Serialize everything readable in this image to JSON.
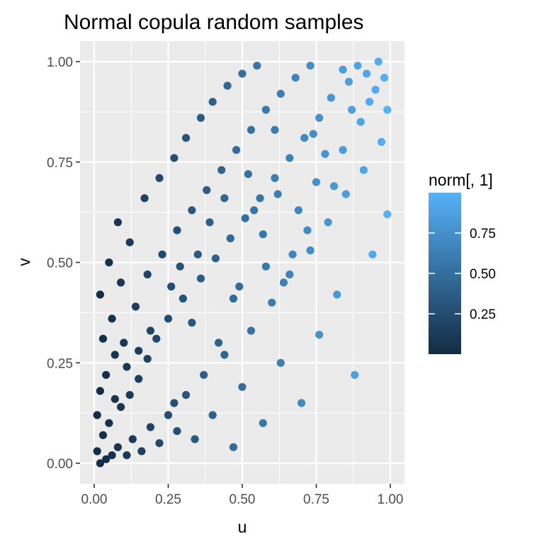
{
  "chart_data": {
    "type": "scatter",
    "title": "Normal copula random samples",
    "xlabel": "u",
    "ylabel": "v",
    "xlim": [
      0,
      1
    ],
    "ylim": [
      0,
      1
    ],
    "x_ticks": [
      "0.00",
      "0.25",
      "0.50",
      "0.75",
      "1.00"
    ],
    "y_ticks": [
      "0.00",
      "0.25",
      "0.50",
      "0.75",
      "1.00"
    ],
    "x_tick_values": [
      0,
      0.25,
      0.5,
      0.75,
      1
    ],
    "y_tick_values": [
      0,
      0.25,
      0.5,
      0.75,
      1
    ],
    "grid": true,
    "color_variable": "u",
    "legend": {
      "title": "norm[, 1]",
      "placement": "right",
      "range": [
        0,
        1
      ],
      "breaks": [
        0.25,
        0.5,
        0.75
      ],
      "break_labels": [
        "0.25",
        "0.50",
        "0.75"
      ],
      "low_color": "#132B43",
      "high_color": "#56B1F7"
    },
    "series": [
      {
        "points": [
          [
            0.02,
            0.0
          ],
          [
            0.04,
            0.01
          ],
          [
            0.01,
            0.03
          ],
          [
            0.06,
            0.02
          ],
          [
            0.03,
            0.07
          ],
          [
            0.08,
            0.04
          ],
          [
            0.11,
            0.02
          ],
          [
            0.01,
            0.12
          ],
          [
            0.05,
            0.1
          ],
          [
            0.13,
            0.06
          ],
          [
            0.02,
            0.18
          ],
          [
            0.09,
            0.14
          ],
          [
            0.16,
            0.03
          ],
          [
            0.04,
            0.22
          ],
          [
            0.12,
            0.17
          ],
          [
            0.19,
            0.09
          ],
          [
            0.07,
            0.27
          ],
          [
            0.22,
            0.05
          ],
          [
            0.15,
            0.21
          ],
          [
            0.03,
            0.31
          ],
          [
            0.25,
            0.12
          ],
          [
            0.1,
            0.3
          ],
          [
            0.18,
            0.26
          ],
          [
            0.28,
            0.08
          ],
          [
            0.06,
            0.36
          ],
          [
            0.21,
            0.31
          ],
          [
            0.31,
            0.17
          ],
          [
            0.14,
            0.39
          ],
          [
            0.34,
            0.06
          ],
          [
            0.02,
            0.42
          ],
          [
            0.25,
            0.36
          ],
          [
            0.37,
            0.22
          ],
          [
            0.09,
            0.45
          ],
          [
            0.4,
            0.12
          ],
          [
            0.18,
            0.47
          ],
          [
            0.3,
            0.41
          ],
          [
            0.44,
            0.27
          ],
          [
            0.05,
            0.5
          ],
          [
            0.47,
            0.04
          ],
          [
            0.23,
            0.52
          ],
          [
            0.36,
            0.46
          ],
          [
            0.5,
            0.19
          ],
          [
            0.12,
            0.55
          ],
          [
            0.53,
            0.33
          ],
          [
            0.28,
            0.58
          ],
          [
            0.41,
            0.51
          ],
          [
            0.57,
            0.1
          ],
          [
            0.08,
            0.6
          ],
          [
            0.6,
            0.4
          ],
          [
            0.33,
            0.63
          ],
          [
            0.46,
            0.56
          ],
          [
            0.63,
            0.25
          ],
          [
            0.17,
            0.66
          ],
          [
            0.66,
            0.47
          ],
          [
            0.38,
            0.68
          ],
          [
            0.51,
            0.61
          ],
          [
            0.7,
            0.15
          ],
          [
            0.22,
            0.71
          ],
          [
            0.73,
            0.53
          ],
          [
            0.43,
            0.73
          ],
          [
            0.56,
            0.66
          ],
          [
            0.76,
            0.32
          ],
          [
            0.27,
            0.76
          ],
          [
            0.79,
            0.6
          ],
          [
            0.48,
            0.78
          ],
          [
            0.61,
            0.71
          ],
          [
            0.82,
            0.42
          ],
          [
            0.31,
            0.81
          ],
          [
            0.85,
            0.67
          ],
          [
            0.53,
            0.83
          ],
          [
            0.66,
            0.76
          ],
          [
            0.88,
            0.22
          ],
          [
            0.36,
            0.86
          ],
          [
            0.91,
            0.73
          ],
          [
            0.58,
            0.88
          ],
          [
            0.71,
            0.81
          ],
          [
            0.94,
            0.52
          ],
          [
            0.4,
            0.9
          ],
          [
            0.97,
            0.8
          ],
          [
            0.63,
            0.92
          ],
          [
            0.76,
            0.86
          ],
          [
            0.99,
            0.62
          ],
          [
            0.45,
            0.94
          ],
          [
            0.8,
            0.91
          ],
          [
            0.68,
            0.96
          ],
          [
            0.93,
            0.9
          ],
          [
            0.5,
            0.97
          ],
          [
            0.86,
            0.95
          ],
          [
            0.73,
            0.99
          ],
          [
            0.98,
            0.96
          ],
          [
            0.89,
            0.99
          ],
          [
            0.96,
            1.0
          ],
          [
            0.55,
            0.99
          ],
          [
            0.99,
            0.88
          ],
          [
            0.84,
            0.98
          ],
          [
            0.92,
            0.97
          ],
          [
            0.64,
            0.45
          ],
          [
            0.42,
            0.3
          ],
          [
            0.27,
            0.15
          ],
          [
            0.72,
            0.58
          ],
          [
            0.35,
            0.52
          ],
          [
            0.58,
            0.49
          ],
          [
            0.81,
            0.69
          ],
          [
            0.19,
            0.33
          ],
          [
            0.47,
            0.41
          ],
          [
            0.69,
            0.63
          ],
          [
            0.52,
            0.72
          ],
          [
            0.39,
            0.6
          ],
          [
            0.84,
            0.78
          ],
          [
            0.26,
            0.44
          ],
          [
            0.61,
            0.83
          ],
          [
            0.75,
            0.7
          ],
          [
            0.15,
            0.28
          ],
          [
            0.44,
            0.66
          ],
          [
            0.9,
            0.85
          ],
          [
            0.33,
            0.35
          ],
          [
            0.57,
            0.57
          ],
          [
            0.78,
            0.77
          ],
          [
            0.11,
            0.24
          ],
          [
            0.67,
            0.52
          ],
          [
            0.87,
            0.88
          ],
          [
            0.54,
            0.63
          ],
          [
            0.29,
            0.49
          ],
          [
            0.74,
            0.82
          ],
          [
            0.07,
            0.16
          ],
          [
            0.49,
            0.44
          ],
          [
            0.95,
            0.93
          ],
          [
            0.62,
            0.67
          ]
        ]
      }
    ]
  }
}
